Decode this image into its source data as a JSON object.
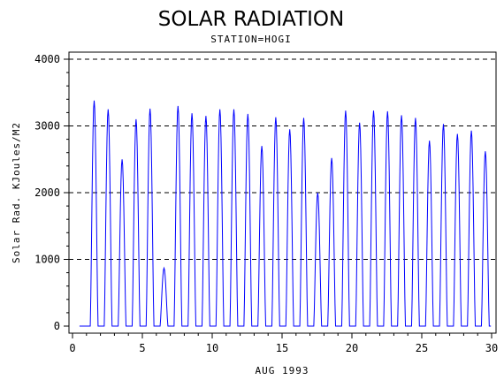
{
  "chart_data": {
    "type": "line",
    "title": "SOLAR RADIATION",
    "subtitle": "STATION=HOGI",
    "xlabel": "AUG 1993",
    "ylabel": "Solar Rad. KJoules/M2",
    "xlim": [
      0,
      30
    ],
    "ylim": [
      0,
      4000
    ],
    "x_ticks": [
      "0",
      "5",
      "10",
      "15",
      "20",
      "25",
      "30"
    ],
    "y_ticks": [
      "0",
      "1000",
      "2000",
      "3000",
      "4000"
    ],
    "grid": "horizontal dashed at 1000, 2000, 3000, 4000",
    "line_color": "#0000ff",
    "series": [
      {
        "daily_peaks": [
          {
            "day": 1,
            "peak": 3380
          },
          {
            "day": 2,
            "peak": 3250
          },
          {
            "day": 3,
            "peak": 2500
          },
          {
            "day": 4,
            "peak": 3100
          },
          {
            "day": 5,
            "peak": 3260
          },
          {
            "day": 6,
            "peak": 870
          },
          {
            "day": 7,
            "peak": 3300
          },
          {
            "day": 8,
            "peak": 3190
          },
          {
            "day": 9,
            "peak": 3150
          },
          {
            "day": 10,
            "peak": 3250
          },
          {
            "day": 11,
            "peak": 3250
          },
          {
            "day": 12,
            "peak": 3180
          },
          {
            "day": 13,
            "peak": 2700
          },
          {
            "day": 14,
            "peak": 3130
          },
          {
            "day": 15,
            "peak": 2950
          },
          {
            "day": 16,
            "peak": 3120
          },
          {
            "day": 17,
            "peak": 2000
          },
          {
            "day": 18,
            "peak": 2520
          },
          {
            "day": 19,
            "peak": 3230
          },
          {
            "day": 20,
            "peak": 3050
          },
          {
            "day": 21,
            "peak": 3230
          },
          {
            "day": 22,
            "peak": 3220
          },
          {
            "day": 23,
            "peak": 3160
          },
          {
            "day": 24,
            "peak": 3120
          },
          {
            "day": 25,
            "peak": 2780
          },
          {
            "day": 26,
            "peak": 3030
          },
          {
            "day": 27,
            "peak": 2880
          },
          {
            "day": 28,
            "peak": 2930
          },
          {
            "day": 29,
            "peak": 2620
          }
        ]
      }
    ]
  }
}
